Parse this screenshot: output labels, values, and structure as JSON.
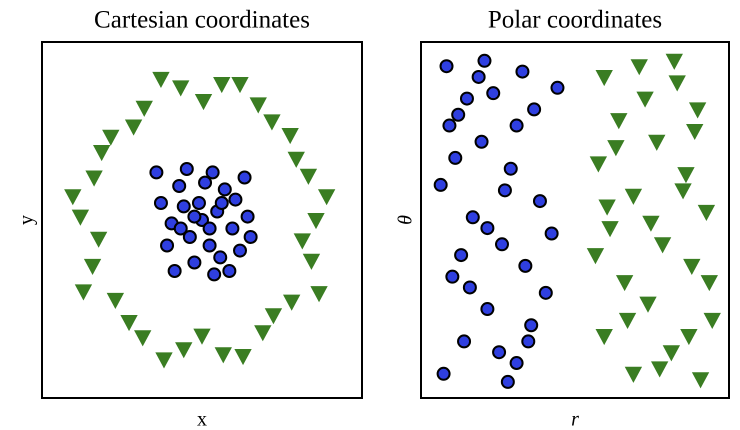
{
  "chart_data": [
    {
      "type": "scatter",
      "title": "Cartesian coordinates",
      "xlabel": "x",
      "ylabel": "y",
      "xlim": [
        -1,
        1
      ],
      "ylim": [
        -1,
        1
      ],
      "series": [
        {
          "color": "#3a7d22",
          "marker": "triangle-down",
          "x": [
            0.75,
            0.7,
            0.58,
            0.37,
            0.13,
            -0.14,
            -0.38,
            -0.6,
            -0.71,
            -0.8,
            -0.72,
            -0.57,
            -0.39,
            -0.12,
            0.14,
            0.4,
            0.59,
            0.72,
            0.82,
            0.62,
            0.46,
            0.25,
            0.01,
            -0.27,
            -0.45,
            -0.66,
            -0.85,
            -0.68,
            -0.78,
            -0.48,
            -0.25,
            0.0,
            0.27,
            0.47,
            0.77,
            0.66
          ],
          "y": [
            0.0,
            0.26,
            0.5,
            0.68,
            0.8,
            0.78,
            0.66,
            0.49,
            0.25,
            0.02,
            -0.27,
            -0.47,
            -0.69,
            -0.76,
            -0.79,
            -0.66,
            -0.48,
            -0.24,
            0.14,
            0.36,
            0.58,
            0.8,
            0.7,
            0.83,
            0.55,
            0.4,
            0.14,
            -0.11,
            -0.42,
            -0.6,
            -0.82,
            -0.68,
            -0.8,
            -0.56,
            -0.43,
            -0.12
          ]
        },
        {
          "color": "#2f3fe0",
          "marker": "circle",
          "x": [
            0,
            0.1,
            -0.12,
            0.05,
            -0.08,
            0.2,
            -0.2,
            0.15,
            -0.15,
            0.02,
            0.22,
            -0.23,
            0.12,
            -0.05,
            0.25,
            -0.27,
            0.3,
            -0.02,
            0.07,
            -0.1,
            0.18,
            -0.18,
            0.28,
            -0.3,
            0.05,
            -0.05,
            0.13,
            -0.14,
            0.08,
            0.32
          ],
          "y": [
            0,
            0.05,
            0.08,
            -0.15,
            -0.1,
            -0.05,
            -0.02,
            0.18,
            0.2,
            0.22,
            0.12,
            -0.15,
            -0.22,
            -0.25,
            -0.18,
            0.1,
            0.02,
            0.1,
            0.28,
            0.3,
            -0.3,
            -0.3,
            0.25,
            0.28,
            -0.05,
            0.02,
            0.1,
            -0.05,
            -0.32,
            -0.1
          ]
        }
      ]
    },
    {
      "type": "scatter",
      "title": "Polar coordinates",
      "xlabel": "r",
      "ylabel": "θ",
      "xlim": [
        0,
        1
      ],
      "ylim": [
        0,
        6.3
      ],
      "series": [
        {
          "color": "#2f3fe0",
          "marker": "circle",
          "x": [
            0.05,
            0.12,
            0.2,
            0.3,
            0.08,
            0.25,
            0.35,
            0.15,
            0.04,
            0.28,
            0.18,
            0.38,
            0.1,
            0.22,
            0.32,
            0.06,
            0.27,
            0.14,
            0.33,
            0.2,
            0.09,
            0.3,
            0.17,
            0.36,
            0.24,
            0.11,
            0.4,
            0.07,
            0.26,
            0.19,
            0.34,
            0.13,
            0.44,
            0.42
          ],
          "y": [
            0.3,
            0.9,
            1.5,
            0.5,
            2.1,
            2.7,
            1.2,
            3.2,
            3.8,
            4.1,
            4.6,
            3.5,
            5.1,
            5.5,
            5.9,
            6.0,
            0.15,
            1.9,
            2.3,
            3.0,
            4.3,
            4.9,
            5.8,
            5.2,
            0.7,
            2.5,
            1.8,
            4.9,
            3.7,
            6.1,
            0.9,
            5.4,
            5.6,
            2.9
          ]
        },
        {
          "color": "#3a7d22",
          "marker": "triangle-down",
          "x": [
            0.6,
            0.72,
            0.85,
            0.92,
            0.65,
            0.78,
            0.58,
            0.88,
            0.7,
            0.95,
            0.62,
            0.8,
            0.9,
            0.67,
            0.75,
            0.97,
            0.6,
            0.83,
            0.7,
            0.93,
            0.57,
            0.87,
            0.74,
            0.64,
            0.91,
            0.68,
            0.79,
            0.96,
            0.61,
            0.84,
            0.76,
            0.89
          ],
          "y": [
            5.8,
            6.0,
            5.7,
            5.2,
            5.0,
            4.6,
            4.2,
            4.0,
            3.6,
            3.3,
            3.0,
            2.7,
            2.3,
            2.0,
            1.6,
            1.3,
            1.0,
            0.7,
            0.3,
            0.2,
            2.5,
            3.7,
            5.4,
            4.5,
            4.8,
            1.3,
            0.4,
            2.0,
            3.4,
            6.1,
            3.1,
            1.0
          ]
        }
      ]
    }
  ]
}
